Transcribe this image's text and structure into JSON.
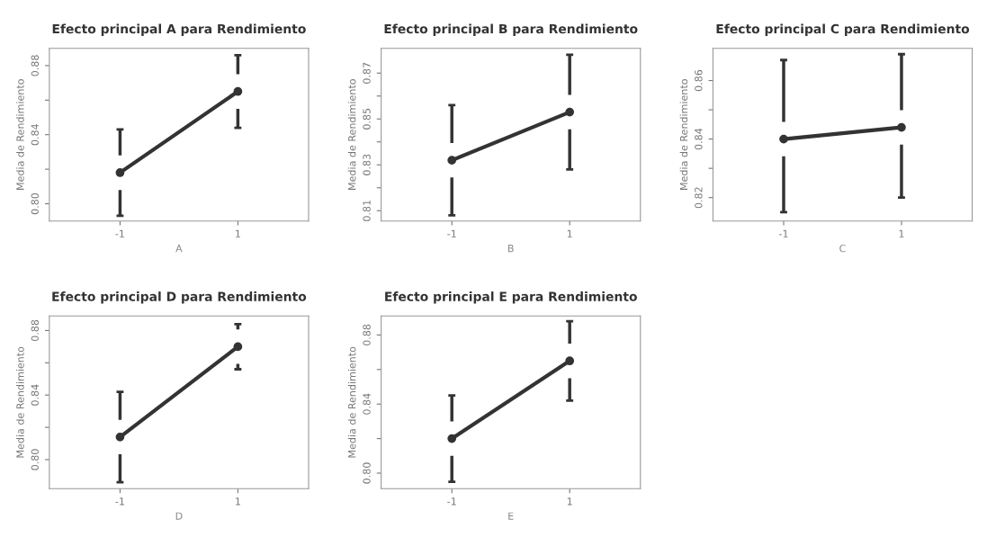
{
  "chart_data": [
    {
      "type": "line",
      "title": "Efecto principal A para Rendimiento",
      "xlabel": "A",
      "ylabel": "Media de Rendimiento",
      "categories": [
        "-1",
        "1"
      ],
      "values": [
        0.818,
        0.865
      ],
      "errors": [
        0.025,
        0.021
      ],
      "color": "#333333",
      "marker": "circle",
      "ylim": [
        0.79,
        0.89
      ],
      "yticks": [
        {
          "value": 0.8,
          "label": "0.80"
        },
        {
          "value": 0.82,
          "label": null
        },
        {
          "value": 0.84,
          "label": "0.84"
        },
        {
          "value": 0.86,
          "label": null
        },
        {
          "value": 0.88,
          "label": "0.88"
        }
      ],
      "grid": false
    },
    {
      "type": "line",
      "title": "Efecto principal B para Rendimiento",
      "xlabel": "B",
      "ylabel": "Media de Rendimiento",
      "categories": [
        "-1",
        "1"
      ],
      "values": [
        0.832,
        0.853
      ],
      "errors": [
        0.024,
        0.025
      ],
      "color": "#333333",
      "marker": "circle",
      "ylim": [
        0.8055,
        0.8808
      ],
      "yticks": [
        {
          "value": 0.81,
          "label": "0.81"
        },
        {
          "value": 0.82,
          "label": null
        },
        {
          "value": 0.83,
          "label": "0.83"
        },
        {
          "value": 0.84,
          "label": null
        },
        {
          "value": 0.85,
          "label": "0.85"
        },
        {
          "value": 0.86,
          "label": null
        },
        {
          "value": 0.87,
          "label": "0.87"
        }
      ],
      "grid": false
    },
    {
      "type": "line",
      "title": "Efecto principal C para Rendimiento",
      "xlabel": "C",
      "ylabel": "Media de Rendimiento",
      "categories": [
        "-1",
        "1"
      ],
      "values": [
        0.84,
        0.844
      ],
      "errors": [
        [
          0.815,
          0.867
        ],
        [
          0.82,
          0.869
        ]
      ],
      "color": "#333333",
      "marker": "circle",
      "ylim": [
        0.812,
        0.871
      ],
      "yticks": [
        {
          "value": 0.82,
          "label": "0.82"
        },
        {
          "value": 0.83,
          "label": null
        },
        {
          "value": 0.84,
          "label": "0.84"
        },
        {
          "value": 0.85,
          "label": null
        },
        {
          "value": 0.86,
          "label": "0.86"
        }
      ],
      "grid": false
    },
    {
      "type": "line",
      "title": "Efecto principal D para Rendimiento",
      "xlabel": "D",
      "ylabel": "Media de Rendimiento",
      "categories": [
        "-1",
        "1"
      ],
      "values": [
        0.814,
        0.87
      ],
      "errors": [
        0.028,
        0.014
      ],
      "color": "#333333",
      "marker": "circle",
      "ylim": [
        0.782,
        0.889
      ],
      "yticks": [
        {
          "value": 0.8,
          "label": "0.80"
        },
        {
          "value": 0.82,
          "label": null
        },
        {
          "value": 0.84,
          "label": "0.84"
        },
        {
          "value": 0.86,
          "label": null
        },
        {
          "value": 0.88,
          "label": "0.88"
        }
      ],
      "grid": false
    },
    {
      "type": "line",
      "title": "Efecto principal E para Rendimiento",
      "xlabel": "E",
      "ylabel": "Media de Rendimiento",
      "categories": [
        "-1",
        "1"
      ],
      "values": [
        0.82,
        0.865
      ],
      "errors": [
        0.025,
        0.023
      ],
      "color": "#333333",
      "marker": "circle",
      "ylim": [
        0.791,
        0.891
      ],
      "yticks": [
        {
          "value": 0.8,
          "label": "0.80"
        },
        {
          "value": 0.82,
          "label": null
        },
        {
          "value": 0.84,
          "label": "0.84"
        },
        {
          "value": 0.86,
          "label": null
        },
        {
          "value": 0.88,
          "label": "0.88"
        }
      ],
      "grid": false
    }
  ]
}
